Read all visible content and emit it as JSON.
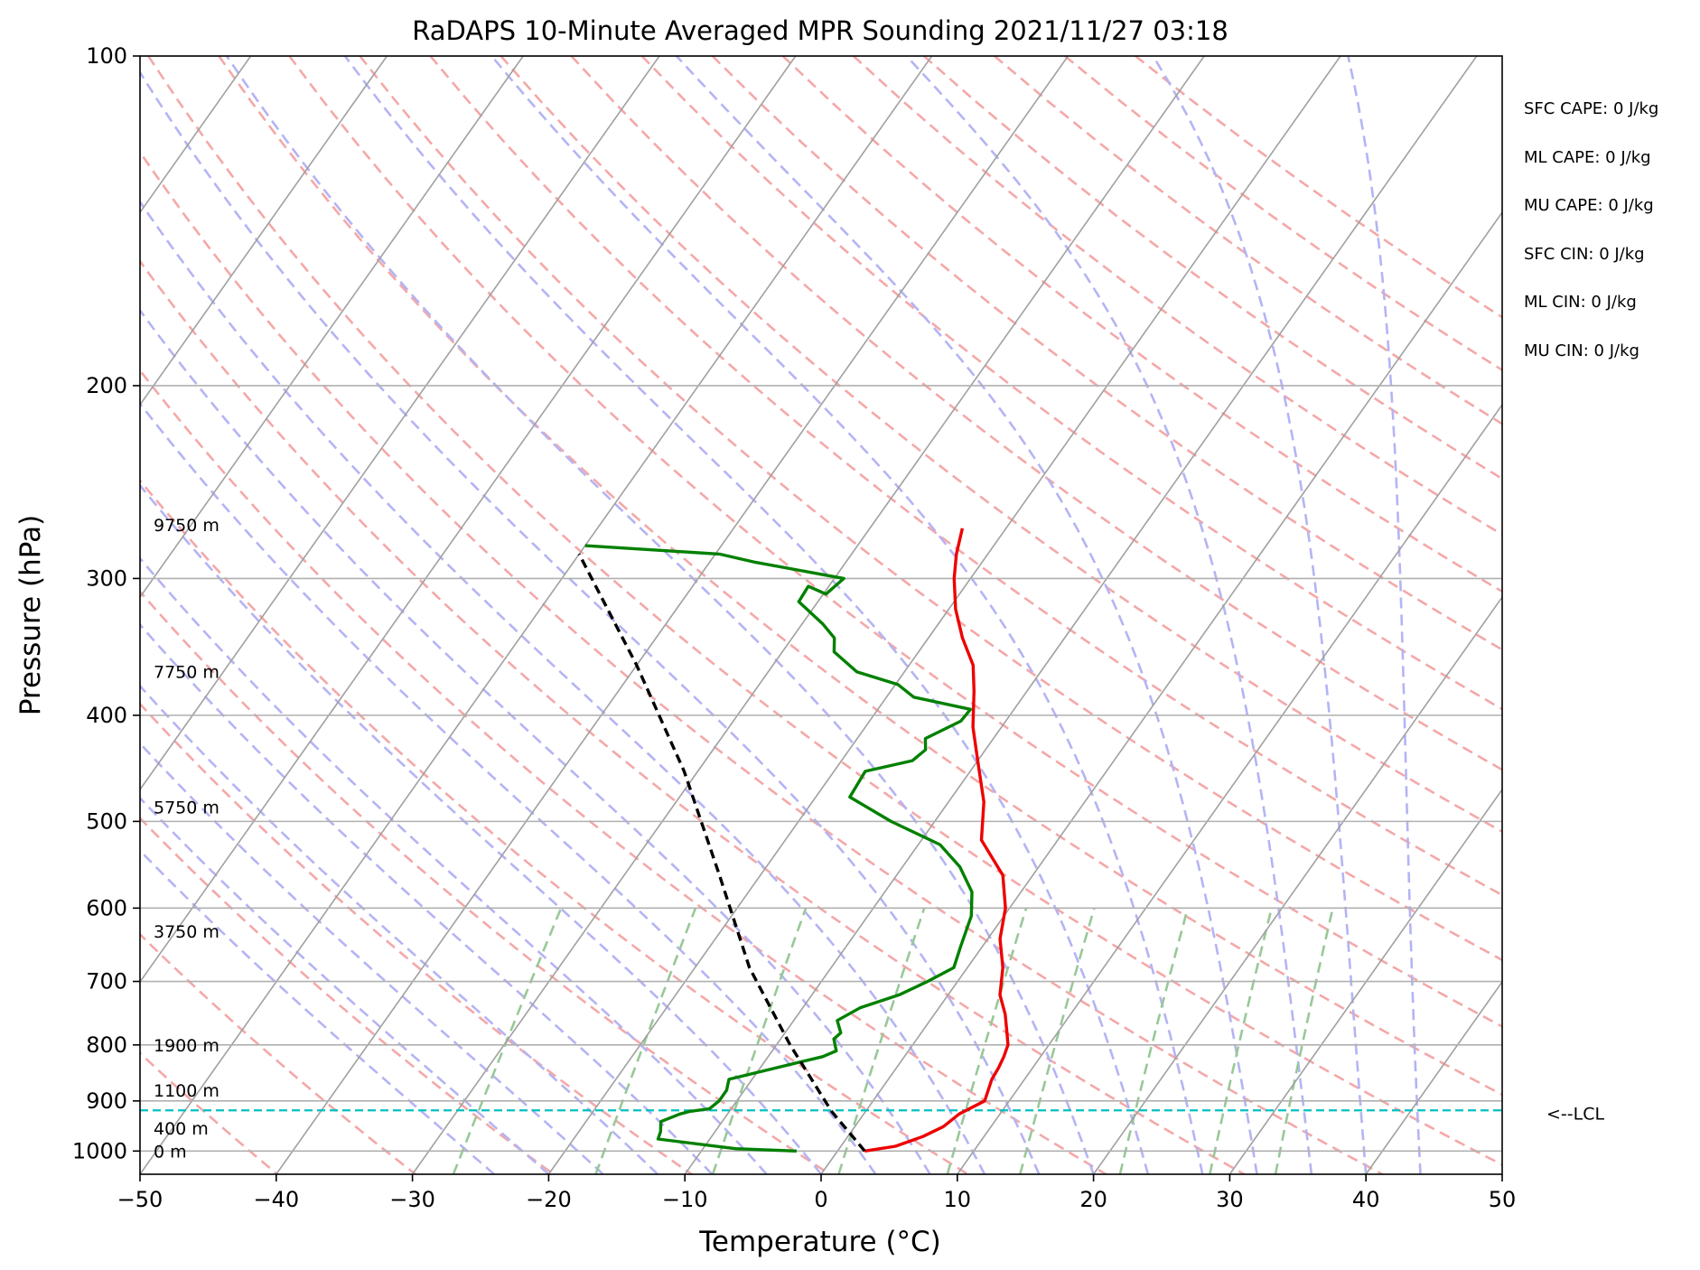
{
  "chart_data": {
    "type": "line",
    "title": "RaDAPS 10-Minute Averaged MPR Sounding 2021/11/27 03:18",
    "xlabel": "Temperature (°C)",
    "ylabel": "Pressure (hPa)",
    "xlim": [
      -50,
      50
    ],
    "ylim": [
      1050,
      100
    ],
    "y_scale": "log",
    "grid": true,
    "x_ticks": [
      {
        "v": -50,
        "label": "−50"
      },
      {
        "v": -40,
        "label": "−40"
      },
      {
        "v": -30,
        "label": "−30"
      },
      {
        "v": -20,
        "label": "−20"
      },
      {
        "v": -10,
        "label": "−10"
      },
      {
        "v": 0,
        "label": "0"
      },
      {
        "v": 10,
        "label": "10"
      },
      {
        "v": 20,
        "label": "20"
      },
      {
        "v": 30,
        "label": "30"
      },
      {
        "v": 40,
        "label": "40"
      },
      {
        "v": 50,
        "label": "50"
      }
    ],
    "y_ticks": [
      {
        "v": 100,
        "label": "100"
      },
      {
        "v": 200,
        "label": "200"
      },
      {
        "v": 300,
        "label": "300"
      },
      {
        "v": 400,
        "label": "400"
      },
      {
        "v": 500,
        "label": "500"
      },
      {
        "v": 600,
        "label": "600"
      },
      {
        "v": 700,
        "label": "700"
      },
      {
        "v": 800,
        "label": "800"
      },
      {
        "v": 900,
        "label": "900"
      },
      {
        "v": 1000,
        "label": "1000"
      }
    ],
    "series": [
      {
        "color": "#ee0000",
        "x": [
          2.0,
          4.0,
          5.5,
          6.5,
          7.0,
          8.2,
          7.9,
          7.6,
          7.5,
          7.3,
          7.0,
          6.3,
          5.2,
          3.8,
          2.6,
          0.9,
          -0.3,
          -2.2,
          -5.6,
          -7.4,
          -10.0,
          -12.1,
          -13.9,
          -15.3,
          -17.5,
          -19.5,
          -21.2,
          -22.3,
          -23.2
        ],
        "y": [
          1000,
          990,
          970,
          950,
          925,
          900,
          880,
          860,
          840,
          820,
          800,
          780,
          750,
          720,
          680,
          640,
          600,
          560,
          520,
          480,
          440,
          410,
          380,
          360,
          340,
          320,
          300,
          285,
          270
        ]
      },
      {
        "color": "#008000",
        "x": [
          -3.0,
          -7.6,
          -13.8,
          -14.0,
          -14.5,
          -13.5,
          -12.9,
          -11.6,
          -11.3,
          -11.3,
          -11.7,
          -6.0,
          -5.3,
          -6.1,
          -5.9,
          -6.8,
          -5.8,
          -3.6,
          -2.2,
          -1.0,
          -1.6,
          -2.4,
          -3.6,
          -5.8,
          -8.4,
          -13.2,
          -17.5,
          -17.7,
          -14.8,
          -14.4,
          -15.0,
          -13.3,
          -13.2,
          -18.0,
          -19.8,
          -23.5,
          -26.2,
          -26.9,
          -28.5,
          -31.4,
          -31.5,
          -29.8,
          -29.3,
          -36.6,
          -39.7,
          -50.0
        ],
        "y": [
          1000,
          995,
          975,
          960,
          940,
          925,
          920,
          915,
          900,
          880,
          860,
          820,
          810,
          790,
          780,
          760,
          740,
          720,
          700,
          680,
          650,
          610,
          580,
          550,
          525,
          500,
          475,
          450,
          440,
          430,
          420,
          405,
          395,
          385,
          375,
          365,
          350,
          340,
          330,
          315,
          305,
          310,
          300,
          290,
          285,
          280
        ]
      },
      {
        "color": "#000000",
        "dashed": true,
        "x": [
          2.0,
          -2.5,
          -9.0,
          -16.0,
          -23.0,
          -31.0,
          -40.0,
          -50.0
        ],
        "y": [
          1000,
          920,
          800,
          680,
          560,
          450,
          360,
          285
        ]
      }
    ],
    "lcl": {
      "pressure": 918,
      "label": "<--LCL",
      "color": "#00c0c0"
    },
    "height_labels": [
      {
        "p": 1000,
        "text": "0 m"
      },
      {
        "p": 953,
        "text": "400 m"
      },
      {
        "p": 880,
        "text": "1100 m"
      },
      {
        "p": 800,
        "text": "1900 m"
      },
      {
        "p": 630,
        "text": "3750 m"
      },
      {
        "p": 485,
        "text": "5750 m"
      },
      {
        "p": 365,
        "text": "7750 m"
      },
      {
        "p": 268,
        "text": "9750 m"
      }
    ],
    "stats": [
      "SFC CAPE: 0 J/kg",
      "ML CAPE: 0 J/kg",
      "MU CAPE: 0 J/kg",
      "SFC CIN: 0 J/kg",
      "ML CIN: 0 J/kg",
      "MU CIN: 0 J/kg"
    ],
    "reference_lines": {
      "isotherm_color": "#a0a0a0",
      "dry_adiabat_color": "#f4a8a8",
      "moist_adiabat_color": "#b4b4f4",
      "mixing_ratio_color": "#98c898"
    }
  }
}
